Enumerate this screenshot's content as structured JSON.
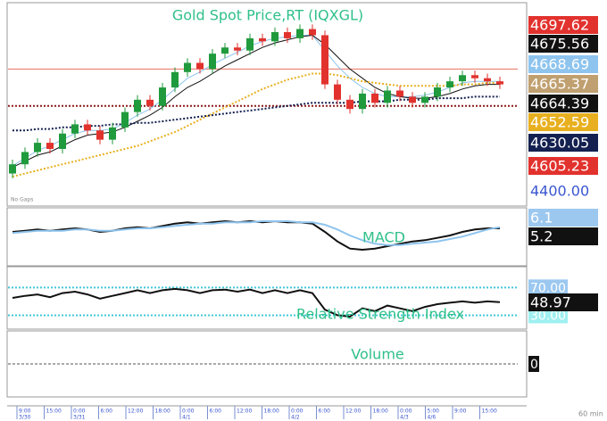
{
  "chart_data": [
    {
      "type": "candlestick",
      "title": "Gold Spot Price,RT (IQXGL)",
      "note": "No Gaps",
      "up_color": "#1f9a3c",
      "down_color": "#e2322e",
      "open": [
        4600,
        4606,
        4614,
        4620,
        4616,
        4626,
        4632,
        4628,
        4622,
        4630,
        4640,
        4648,
        4644,
        4656,
        4666,
        4672,
        4668,
        4678,
        4682,
        4680,
        4688,
        4686,
        4692,
        4688,
        4694,
        4690,
        4658,
        4648,
        4642,
        4652,
        4646,
        4654,
        4650,
        4646,
        4650,
        4656,
        4660,
        4664,
        4662,
        4660
      ],
      "high": [
        4609,
        4617,
        4623,
        4623,
        4629,
        4635,
        4635,
        4631,
        4633,
        4643,
        4651,
        4651,
        4659,
        4669,
        4675,
        4675,
        4681,
        4685,
        4685,
        4691,
        4691,
        4695,
        4695,
        4697,
        4697,
        4693,
        4661,
        4651,
        4655,
        4655,
        4657,
        4657,
        4653,
        4653,
        4659,
        4663,
        4667,
        4667,
        4665,
        4663
      ],
      "low": [
        4597,
        4603,
        4611,
        4613,
        4613,
        4623,
        4625,
        4619,
        4619,
        4627,
        4637,
        4641,
        4641,
        4653,
        4663,
        4665,
        4665,
        4675,
        4677,
        4677,
        4683,
        4683,
        4685,
        4685,
        4687,
        4655,
        4645,
        4639,
        4639,
        4643,
        4643,
        4647,
        4643,
        4643,
        4647,
        4653,
        4657,
        4659,
        4657,
        4655
      ],
      "close": [
        4606,
        4614,
        4620,
        4616,
        4626,
        4632,
        4628,
        4622,
        4630,
        4640,
        4648,
        4644,
        4656,
        4666,
        4672,
        4668,
        4678,
        4682,
        4680,
        4688,
        4686,
        4692,
        4688,
        4694,
        4690,
        4658,
        4648,
        4642,
        4652,
        4646,
        4654,
        4650,
        4646,
        4650,
        4656,
        4660,
        4664,
        4662,
        4660,
        4658
      ],
      "series": [
        {
          "color": "#8ec4ee",
          "dash": false,
          "values": [
            4605,
            4610,
            4615,
            4618,
            4622,
            4626,
            4628,
            4628,
            4629,
            4633,
            4638,
            4642,
            4648,
            4655,
            4662,
            4666,
            4671,
            4675,
            4679,
            4683,
            4686,
            4688,
            4689,
            4690,
            4690,
            4680,
            4670,
            4662,
            4656,
            4652,
            4650,
            4650,
            4650,
            4651,
            4653,
            4656,
            4659,
            4660,
            4660,
            4660
          ]
        },
        {
          "color": "#111111",
          "dash": false,
          "values": [
            4604,
            4608,
            4612,
            4614,
            4618,
            4622,
            4625,
            4626,
            4627,
            4630,
            4634,
            4638,
            4643,
            4650,
            4656,
            4660,
            4665,
            4670,
            4674,
            4678,
            4682,
            4685,
            4687,
            4689,
            4690,
            4684,
            4676,
            4668,
            4662,
            4656,
            4652,
            4650,
            4649,
            4649,
            4650,
            4652,
            4655,
            4657,
            4658,
            4658
          ]
        },
        {
          "color": "#e8b020",
          "dash": true,
          "values": [
            4598,
            4600,
            4602,
            4604,
            4606,
            4608,
            4610,
            4612,
            4614,
            4616,
            4618,
            4621,
            4624,
            4627,
            4631,
            4635,
            4639,
            4643,
            4647,
            4651,
            4655,
            4658,
            4661,
            4663,
            4665,
            4665,
            4664,
            4662,
            4660,
            4659,
            4658,
            4657,
            4657,
            4657,
            4657,
            4657,
            4658,
            4658,
            4659,
            4659
          ]
        },
        {
          "color": "#142050",
          "dash": true,
          "values": [
            4628,
            4628,
            4629,
            4629,
            4630,
            4630,
            4631,
            4631,
            4632,
            4632,
            4633,
            4633,
            4634,
            4635,
            4636,
            4637,
            4638,
            4639,
            4640,
            4641,
            4642,
            4643,
            4644,
            4645,
            4646,
            4646,
            4646,
            4646,
            4647,
            4647,
            4647,
            4648,
            4648,
            4648,
            4649,
            4649,
            4649,
            4650,
            4650,
            4650
          ]
        }
      ],
      "levels": [
        {
          "value": 4668,
          "color": "#e87060",
          "dash": false
        },
        {
          "value": 4644,
          "color": "#8b1a1a",
          "dash": true
        }
      ],
      "ylim": [
        4580,
        4710
      ],
      "axis_labels": [
        {
          "value": 4697.62,
          "color": "#e2322e",
          "text_color": "#ffffff"
        },
        {
          "value": 4675.56,
          "color": "#111111",
          "text_color": "#ffffff"
        },
        {
          "value": 4668.69,
          "color": "#8ec4ee",
          "text_color": "#ffffff"
        },
        {
          "value": 4665.37,
          "color": "#c0a070",
          "text_color": "#ffffff"
        },
        {
          "value": 4664.39,
          "color": "#111111",
          "text_color": "#ffffff"
        },
        {
          "value": 4652.59,
          "color": "#e8b020",
          "text_color": "#ffffff"
        },
        {
          "value": 4630.05,
          "color": "#142050",
          "text_color": "#ffffff"
        },
        {
          "value": 4605.23,
          "color": "#e2322e",
          "text_color": "#ffffff"
        },
        {
          "value": 4400,
          "label": "4400.00",
          "color": "#ffffff",
          "text_color": "#3a56d0"
        }
      ]
    },
    {
      "type": "line",
      "title": "MACD",
      "ylim": [
        -25,
        20
      ],
      "series": [
        {
          "color": "#111111",
          "dash": false,
          "values": [
            2,
            3,
            4,
            3,
            4,
            5,
            4,
            2,
            3,
            5,
            6,
            5,
            7,
            9,
            10,
            9,
            10,
            11,
            10,
            11,
            10,
            11,
            10,
            10,
            9,
            2,
            -6,
            -12,
            -13,
            -12,
            -10,
            -8,
            -6,
            -5,
            -3,
            -1,
            2,
            4,
            5,
            5
          ]
        },
        {
          "color": "#8ec4ee",
          "dash": false,
          "values": [
            1,
            2,
            3,
            3,
            3,
            4,
            4,
            3,
            3,
            4,
            5,
            5,
            6,
            7,
            8,
            9,
            9,
            10,
            10,
            10,
            11,
            11,
            11,
            10,
            10,
            8,
            4,
            -1,
            -5,
            -8,
            -9,
            -9,
            -8,
            -7,
            -6,
            -4,
            -2,
            1,
            4,
            6
          ]
        }
      ],
      "axis_labels": [
        {
          "value": 6.1,
          "color": "#9cc8f0",
          "text_color": "#ffffff"
        },
        {
          "value": 5.2,
          "color": "#111111",
          "text_color": "#ffffff"
        }
      ]
    },
    {
      "type": "line",
      "title": "Relative Strength Index",
      "ylim": [
        10,
        100
      ],
      "series": [
        {
          "color": "#111111",
          "dash": false,
          "values": [
            55,
            58,
            60,
            56,
            62,
            64,
            60,
            54,
            58,
            62,
            66,
            62,
            66,
            68,
            66,
            62,
            66,
            67,
            64,
            67,
            62,
            66,
            62,
            66,
            62,
            38,
            30,
            28,
            40,
            36,
            44,
            40,
            36,
            42,
            46,
            48,
            50,
            48,
            50,
            49
          ]
        }
      ],
      "levels": [
        {
          "value": 70,
          "label": "70.00",
          "color": "#9cc8f0",
          "dash": true
        },
        {
          "value": 30,
          "label": "30.00",
          "color": "#a0f0f0",
          "dash": true
        }
      ],
      "axis_labels": [
        {
          "value": 48.97,
          "color": "#111111",
          "text_color": "#ffffff"
        }
      ]
    },
    {
      "type": "volume",
      "title": "Volume",
      "ylim": [
        -1,
        1
      ],
      "yticks": [
        0
      ],
      "footnote": "60 min",
      "x_labels": [
        {
          "time": "9:00",
          "date": "3/30"
        },
        {
          "time": "15:00"
        },
        {
          "time": "0:00",
          "date": "3/31"
        },
        {
          "time": "6:00"
        },
        {
          "time": "12:00"
        },
        {
          "time": "18:00"
        },
        {
          "time": "0:00",
          "date": "4/1"
        },
        {
          "time": "6:00"
        },
        {
          "time": "12:00"
        },
        {
          "time": "18:00"
        },
        {
          "time": "0:00",
          "date": "4/2"
        },
        {
          "time": "6:00"
        },
        {
          "time": "12:00"
        },
        {
          "time": "18:00"
        },
        {
          "time": "0:00",
          "date": "4/3"
        },
        {
          "time": "5:00",
          "date": "4/6"
        },
        {
          "time": "9:00"
        },
        {
          "time": "15:00"
        }
      ]
    }
  ]
}
